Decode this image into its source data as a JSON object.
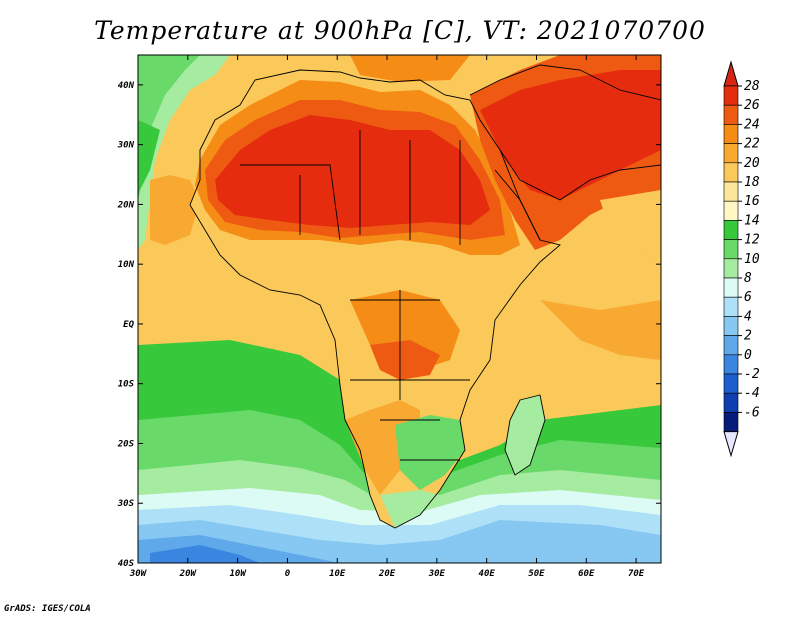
{
  "title": "Temperature at 900hPa [C], VT: 2021070700",
  "credit": "GrADS: IGES/COLA",
  "map": {
    "lon_range": [
      -30,
      75
    ],
    "lat_range": [
      -40,
      45
    ],
    "lon_ticks": [
      {
        "value": -30,
        "label": "30W"
      },
      {
        "value": -20,
        "label": "20W"
      },
      {
        "value": -10,
        "label": "10W"
      },
      {
        "value": 0,
        "label": "0"
      },
      {
        "value": 10,
        "label": "10E"
      },
      {
        "value": 20,
        "label": "20E"
      },
      {
        "value": 30,
        "label": "30E"
      },
      {
        "value": 40,
        "label": "40E"
      },
      {
        "value": 50,
        "label": "50E"
      },
      {
        "value": 60,
        "label": "60E"
      },
      {
        "value": 70,
        "label": "70E"
      }
    ],
    "lat_ticks": [
      {
        "value": 40,
        "label": "40N"
      },
      {
        "value": 30,
        "label": "30N"
      },
      {
        "value": 20,
        "label": "20N"
      },
      {
        "value": 10,
        "label": "10N"
      },
      {
        "value": 0,
        "label": "EQ"
      },
      {
        "value": -10,
        "label": "10S"
      },
      {
        "value": -20,
        "label": "20S"
      },
      {
        "value": -30,
        "label": "30S"
      },
      {
        "value": -40,
        "label": "40S"
      }
    ]
  },
  "colorbar": {
    "levels": [
      28,
      26,
      24,
      22,
      20,
      18,
      16,
      14,
      12,
      10,
      8,
      6,
      4,
      2,
      0,
      -2,
      -4,
      -6
    ],
    "labels": [
      "28",
      "26",
      "24",
      "22",
      "20",
      "18",
      "16",
      "14",
      "12",
      "10",
      "8",
      "6",
      "4",
      "2",
      "0",
      "-2",
      "-4",
      "-6"
    ],
    "colors": [
      "#e52c0f",
      "#ef5a12",
      "#f58c16",
      "#f8a932",
      "#fac95a",
      "#fde79a",
      "#fff8c4",
      "#37c83b",
      "#69d96a",
      "#a5eba0",
      "#dcfbf5",
      "#aee0f8",
      "#86c8f2",
      "#5fa9ea",
      "#3a85df",
      "#1b5fce",
      "#0d3fb0",
      "#071c78"
    ],
    "top_color": "#d42515",
    "bottom_color": "#e6e6ff"
  }
}
